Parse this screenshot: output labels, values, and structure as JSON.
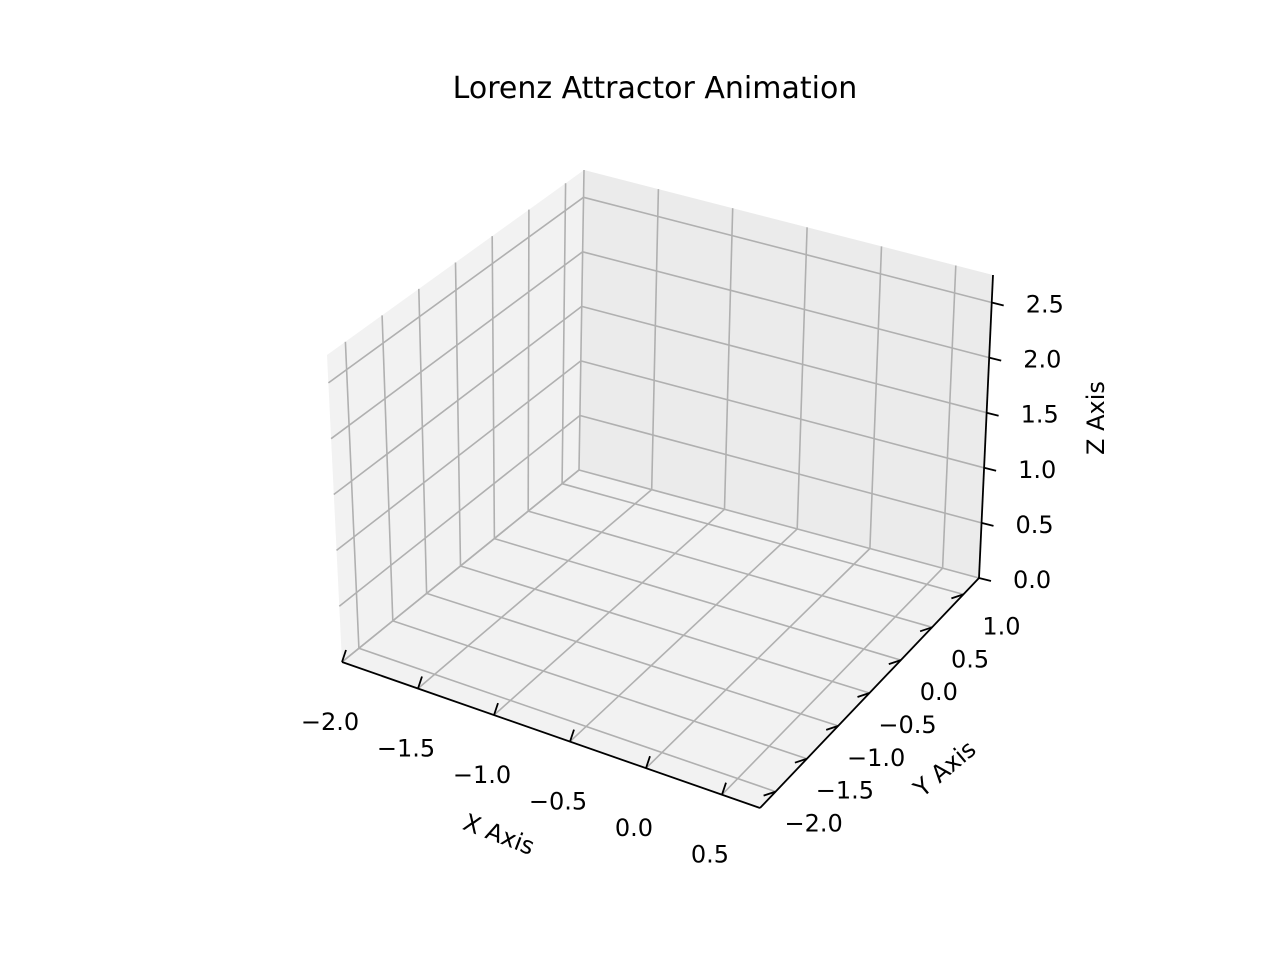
{
  "chart_data": {
    "type": "line",
    "title": "Lorenz Attractor Animation",
    "xlabel": "X Axis",
    "ylabel": "Y Axis",
    "zlabel": "Z Axis",
    "xlim": [
      -2.0,
      0.75
    ],
    "ylim": [
      -2.25,
      1.25
    ],
    "zlim": [
      0.0,
      2.75
    ],
    "x_ticks": [
      "−2.0",
      "−1.5",
      "−1.0",
      "−0.5",
      "0.0",
      "0.5"
    ],
    "y_ticks": [
      "−2.0",
      "−1.5",
      "−1.0",
      "−0.5",
      "0.0",
      "0.5",
      "1.0"
    ],
    "z_ticks": [
      "0.0",
      "0.5",
      "1.0",
      "1.5",
      "2.0",
      "2.5"
    ],
    "grid": true,
    "series": [],
    "pane_colors": {
      "left": "#f2f2f2",
      "back": "#ebebeb",
      "floor": "#f2f2f2"
    }
  }
}
